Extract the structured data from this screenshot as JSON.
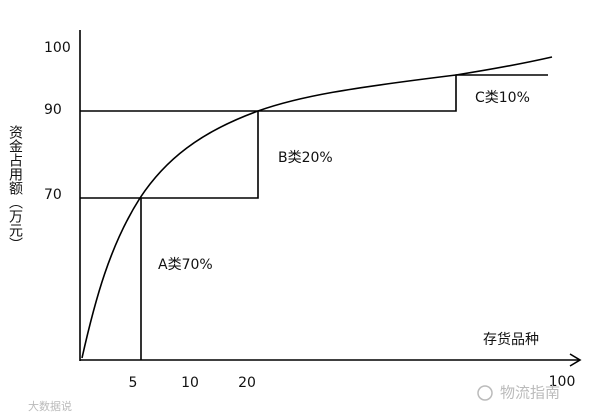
{
  "diagram": {
    "y_axis": {
      "title": "资金占用额（万元）",
      "ticks": [
        "100",
        "90",
        "70"
      ]
    },
    "x_axis": {
      "title": "存货品种",
      "ticks": [
        "5",
        "10",
        "20",
        "100"
      ]
    },
    "regions": [
      {
        "label": "A类70%"
      },
      {
        "label": "B类20%"
      },
      {
        "label": "C类10%"
      }
    ],
    "watermarks": [
      "物流指南",
      "大数据说"
    ]
  }
}
